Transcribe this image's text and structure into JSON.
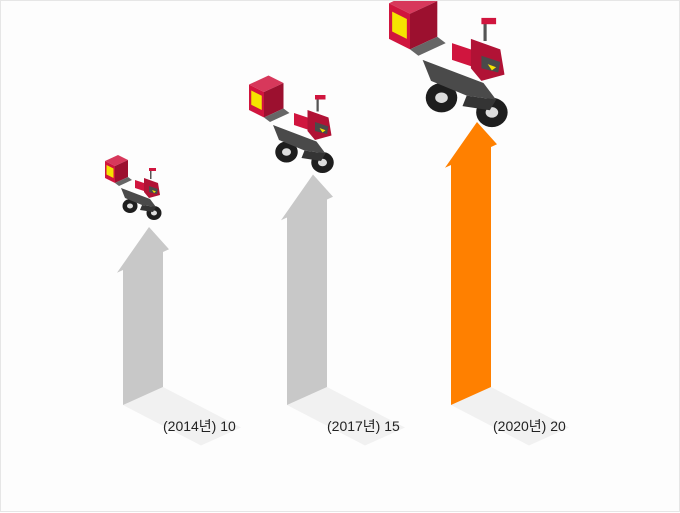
{
  "chart_data": {
    "type": "bar",
    "style": "isometric arrows with delivery scooters",
    "categories": [
      "(2014년)",
      "(2017년)",
      "(2020년)"
    ],
    "values": [
      10,
      15,
      20
    ],
    "labels": [
      "(2014년) 10",
      "(2017년) 15",
      "(2020년) 20"
    ],
    "title": "",
    "xlabel": "",
    "ylabel": "",
    "ylim": [
      0,
      20
    ],
    "grid": false,
    "legend": "none",
    "colors": {
      "bar_default": "#c8c8c8",
      "bar_highlight": "#ff8000",
      "shadow": "#f1f1f1",
      "scooter_red": "#d0153e",
      "scooter_body": "#4a4a4a",
      "scooter_light": "#f5e400"
    },
    "highlight_index": 2
  }
}
